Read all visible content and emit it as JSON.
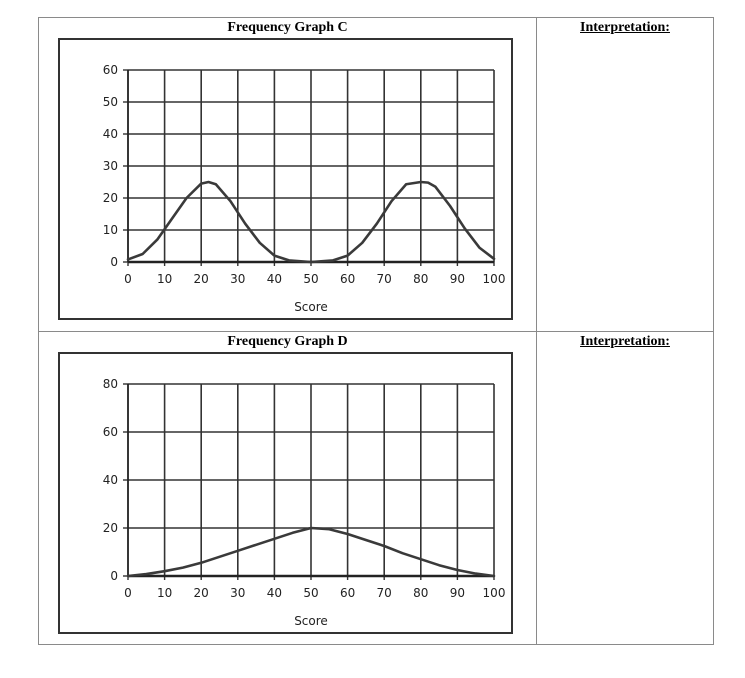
{
  "worksheet": {
    "rows": [
      {
        "graph_title": "Frequency Graph C",
        "interpretation_label": "Interpretation:"
      },
      {
        "graph_title": "Frequency Graph D",
        "interpretation_label": "Interpretation:"
      }
    ]
  },
  "chart_data": [
    {
      "type": "line",
      "title": "Frequency Graph C",
      "xlabel": "Score",
      "ylabel": "",
      "xlim": [
        0,
        100
      ],
      "ylim": [
        0,
        60
      ],
      "xticks": [
        0,
        10,
        20,
        30,
        40,
        50,
        60,
        70,
        80,
        90,
        100
      ],
      "yticks": [
        0,
        10,
        20,
        30,
        40,
        50,
        60
      ],
      "grid": true,
      "line_color": "#3a3a3a",
      "series": [
        {
          "x": [
            0,
            4,
            8,
            12,
            16,
            20,
            22,
            24,
            28,
            32,
            36,
            40,
            44,
            50,
            56,
            60,
            64,
            68,
            72,
            76,
            80,
            82,
            84,
            88,
            92,
            96,
            100
          ],
          "y": [
            0.8,
            2.5,
            7,
            13.5,
            20,
            24.5,
            25,
            24.3,
            19,
            12,
            6,
            2,
            0.5,
            0,
            0.5,
            2,
            6,
            12,
            19,
            24.3,
            25,
            24.8,
            23.5,
            17.5,
            10.5,
            4.5,
            1
          ]
        }
      ]
    },
    {
      "type": "line",
      "title": "Frequency Graph D",
      "xlabel": "Score",
      "ylabel": "",
      "xlim": [
        0,
        100
      ],
      "ylim": [
        0,
        80
      ],
      "xticks": [
        0,
        10,
        20,
        30,
        40,
        50,
        60,
        70,
        80,
        90,
        100
      ],
      "yticks": [
        0,
        20,
        40,
        60,
        80
      ],
      "grid": true,
      "line_color": "#3a3a3a",
      "series": [
        {
          "x": [
            0,
            5,
            10,
            15,
            20,
            25,
            30,
            35,
            40,
            45,
            50,
            55,
            60,
            65,
            70,
            75,
            80,
            85,
            90,
            95,
            100
          ],
          "y": [
            0,
            0.8,
            2,
            3.5,
            5.5,
            8,
            10.5,
            13,
            15.5,
            18,
            20,
            19.5,
            17.5,
            15,
            12.5,
            9.5,
            7,
            4.5,
            2.5,
            1,
            0
          ]
        }
      ]
    }
  ]
}
